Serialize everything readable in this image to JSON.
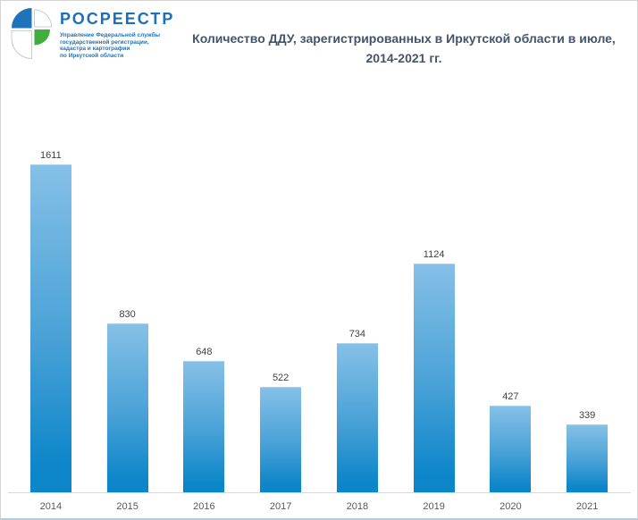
{
  "logo": {
    "name": "РОСРЕЕСТР",
    "sublines": [
      "Управление Федеральной службы",
      "государственной регистрации,",
      "кадастра и картографии",
      "по Иркутской области"
    ],
    "colors": {
      "brand_blue": "#1d6fba",
      "emblem_blue": "#2173b9",
      "emblem_green": "#3fae3c"
    }
  },
  "title": {
    "lines": [
      "Количество ДДУ, зарегистрированных в Иркутской области в июле,",
      "2014-2021 гг."
    ]
  },
  "chart_data": {
    "type": "bar",
    "title": "Количество ДДУ, зарегистрированных в Иркутской области в июле, 2014-2021 гг.",
    "categories": [
      "2014",
      "2015",
      "2016",
      "2017",
      "2018",
      "2019",
      "2020",
      "2021"
    ],
    "values": [
      1611,
      830,
      648,
      522,
      734,
      1124,
      427,
      339
    ],
    "xlabel": "",
    "ylabel": "",
    "ylim": [
      0,
      1700
    ],
    "grid": false,
    "legend": false,
    "data_labels": true,
    "bar_color_top": "#85c0e7",
    "bar_color_mid": "#4aa2d7",
    "bar_color_bottom": "#0d86c9",
    "bar_top_edge": "#a9d0ec",
    "value_label_color": "#404040",
    "axis_tick_color": "#595959",
    "axis_line_color": "#d9d9d9",
    "title_color": "#44546a"
  }
}
